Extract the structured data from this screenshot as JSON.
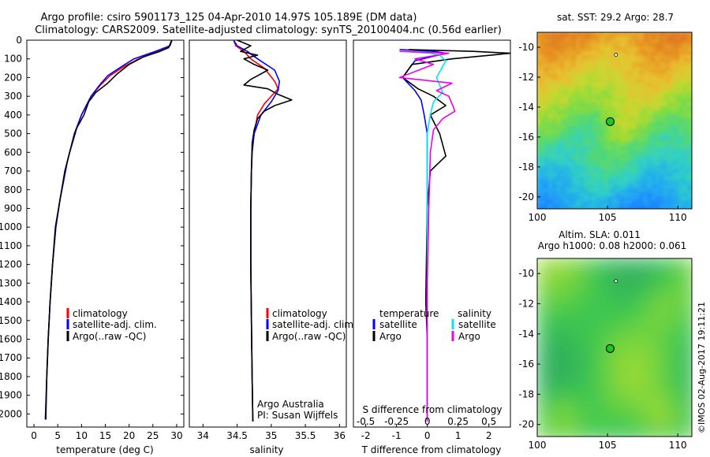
{
  "header": {
    "line1": "Argo profile: csiro 5901173_125 04-Apr-2010 14.97S 105.189E (DM data)",
    "line2": "Climatology: CARS2009. Satellite-adjusted climatology: synTS_20100404.nc (0.56d earlier)"
  },
  "credit": "©IMOS 02-Aug-2017 19:11:21",
  "colors": {
    "clim": "#ff0000",
    "sat": "#0000ff",
    "argo": "#000000",
    "cyan": "#00e5ee",
    "magenta": "#ee00ee"
  },
  "chart_data": [
    {
      "type": "line",
      "id": "temperature",
      "xlabel": "temperature (deg C)",
      "ylabel": "",
      "xlim": [
        -1.5,
        31.5
      ],
      "ylim": [
        2070,
        0
      ],
      "xticks": [
        "0",
        "5",
        "10",
        "15",
        "20",
        "25",
        "30"
      ],
      "yticks": [
        "0",
        "100",
        "200",
        "300",
        "400",
        "500",
        "600",
        "700",
        "800",
        "900",
        "1000",
        "1100",
        "1200",
        "1300",
        "1400",
        "1500",
        "1600",
        "1700",
        "1800",
        "1900",
        "2000"
      ],
      "legend": [
        "climatology",
        "satellite-adj. clim.",
        "Argo(..raw -QC)"
      ],
      "series": [
        {
          "name": "climatology",
          "color": "#ff0000",
          "points": [
            [
              28.9,
              0
            ],
            [
              28.5,
              30
            ],
            [
              26,
              60
            ],
            [
              22,
              100
            ],
            [
              19,
              140
            ],
            [
              16,
              190
            ],
            [
              14,
              240
            ],
            [
              12,
              300
            ],
            [
              10,
              400
            ],
            [
              8.5,
              500
            ],
            [
              7,
              650
            ],
            [
              5.5,
              850
            ],
            [
              4.6,
              1000
            ],
            [
              3.9,
              1200
            ],
            [
              3.4,
              1400
            ],
            [
              3,
              1600
            ],
            [
              2.7,
              1800
            ],
            [
              2.4,
              2030
            ]
          ]
        },
        {
          "name": "satellite-adj. clim.",
          "color": "#0000ff",
          "points": [
            [
              29,
              0
            ],
            [
              28.6,
              30
            ],
            [
              25.5,
              60
            ],
            [
              21,
              100
            ],
            [
              18.5,
              140
            ],
            [
              15.5,
              190
            ],
            [
              13.8,
              240
            ],
            [
              12,
              300
            ],
            [
              10,
              400
            ],
            [
              8.5,
              500
            ],
            [
              7,
              650
            ],
            [
              5.5,
              850
            ],
            [
              4.6,
              1000
            ],
            [
              3.9,
              1200
            ],
            [
              3.4,
              1400
            ],
            [
              3,
              1600
            ],
            [
              2.7,
              1800
            ],
            [
              2.4,
              2030
            ]
          ]
        },
        {
          "name": "Argo(..raw -QC)",
          "color": "#000000",
          "points": [
            [
              29,
              0
            ],
            [
              28.3,
              40
            ],
            [
              26.5,
              60
            ],
            [
              23,
              90
            ],
            [
              20,
              130
            ],
            [
              17.5,
              180
            ],
            [
              15.5,
              230
            ],
            [
              13,
              280
            ],
            [
              11.5,
              330
            ],
            [
              10.5,
              400
            ],
            [
              9,
              470
            ],
            [
              7.5,
              600
            ],
            [
              6.5,
              700
            ],
            [
              5.5,
              850
            ],
            [
              4.5,
              1000
            ],
            [
              3.9,
              1200
            ],
            [
              3.4,
              1400
            ],
            [
              3,
              1600
            ],
            [
              2.7,
              1800
            ],
            [
              2.5,
              2030
            ]
          ]
        }
      ]
    },
    {
      "type": "line",
      "id": "salinity",
      "xlabel": "salinity",
      "xlim": [
        33.8,
        36.1
      ],
      "ylim": [
        2070,
        0
      ],
      "xticks": [
        "34",
        "34.5",
        "35",
        "35.5",
        "36"
      ],
      "legend": [
        "climatology",
        "satellite-adj. clim.",
        "Argo(..raw -QC)"
      ],
      "annotation": [
        "Argo Australia",
        "PI: Susan Wijffels"
      ],
      "series": [
        {
          "name": "climatology",
          "color": "#ff0000",
          "points": [
            [
              34.45,
              0
            ],
            [
              34.48,
              30
            ],
            [
              34.6,
              60
            ],
            [
              34.7,
              100
            ],
            [
              34.9,
              150
            ],
            [
              35.05,
              220
            ],
            [
              35.1,
              260
            ],
            [
              35.0,
              300
            ],
            [
              34.9,
              340
            ],
            [
              34.8,
              400
            ],
            [
              34.75,
              500
            ],
            [
              34.72,
              600
            ],
            [
              34.71,
              700
            ],
            [
              34.7,
              900
            ],
            [
              34.7,
              1200
            ],
            [
              34.71,
              1500
            ],
            [
              34.72,
              1800
            ],
            [
              34.73,
              2040
            ]
          ]
        },
        {
          "name": "satellite-adj. clim.",
          "color": "#0000ff",
          "points": [
            [
              34.45,
              0
            ],
            [
              34.5,
              30
            ],
            [
              34.65,
              60
            ],
            [
              34.8,
              100
            ],
            [
              35.05,
              160
            ],
            [
              35.12,
              220
            ],
            [
              35.1,
              270
            ],
            [
              35.0,
              330
            ],
            [
              34.85,
              400
            ],
            [
              34.75,
              500
            ],
            [
              34.72,
              600
            ],
            [
              34.71,
              700
            ],
            [
              34.7,
              900
            ],
            [
              34.7,
              1200
            ],
            [
              34.71,
              1500
            ],
            [
              34.72,
              1800
            ],
            [
              34.73,
              2040
            ]
          ]
        },
        {
          "name": "Argo(..raw -QC)",
          "color": "#000000",
          "points": [
            [
              34.5,
              0
            ],
            [
              34.7,
              30
            ],
            [
              34.55,
              60
            ],
            [
              34.8,
              80
            ],
            [
              34.6,
              100
            ],
            [
              34.75,
              130
            ],
            [
              34.95,
              160
            ],
            [
              34.7,
              210
            ],
            [
              34.6,
              240
            ],
            [
              34.95,
              260
            ],
            [
              35.1,
              290
            ],
            [
              35.3,
              320
            ],
            [
              35.05,
              350
            ],
            [
              34.9,
              380
            ],
            [
              34.8,
              420
            ],
            [
              34.75,
              480
            ],
            [
              34.72,
              550
            ],
            [
              34.71,
              700
            ],
            [
              34.7,
              900
            ],
            [
              34.7,
              1200
            ],
            [
              34.71,
              1500
            ],
            [
              34.72,
              1800
            ],
            [
              34.73,
              2040
            ]
          ]
        }
      ]
    },
    {
      "type": "line",
      "id": "difference",
      "xlabel": "T difference from climatology",
      "top_label": "S difference from climatology",
      "xlim": [
        -2.4,
        2.7
      ],
      "ylim": [
        2070,
        0
      ],
      "xticks": [
        "-2",
        "-1",
        "0",
        "1",
        "2"
      ],
      "top_ticks": [
        "-0.5",
        "-0.25",
        "0",
        "0.25",
        "0.5"
      ],
      "legend_headers": [
        "temperature",
        "salinity"
      ],
      "legend": [
        "satellite",
        "Argo",
        "satellite",
        "Argo"
      ],
      "series": [
        {
          "name": "temperature satellite",
          "color": "#0000ff",
          "points": [
            [
              -0.9,
              50
            ],
            [
              0.2,
              60
            ],
            [
              0.6,
              70
            ],
            [
              -0.4,
              110
            ],
            [
              -0.8,
              200
            ],
            [
              -0.4,
              270
            ],
            [
              -0.2,
              320
            ],
            [
              -0.1,
              400
            ],
            [
              0,
              500
            ],
            [
              0,
              600
            ],
            [
              0,
              2040
            ]
          ]
        },
        {
          "name": "temperature Argo",
          "color": "#000000",
          "points": [
            [
              -0.6,
              50
            ],
            [
              1.5,
              60
            ],
            [
              2.7,
              70
            ],
            [
              0.8,
              100
            ],
            [
              -0.5,
              130
            ],
            [
              -0.8,
              200
            ],
            [
              -0.3,
              260
            ],
            [
              0.2,
              300
            ],
            [
              0.6,
              350
            ],
            [
              0.1,
              400
            ],
            [
              0.4,
              500
            ],
            [
              0.6,
              620
            ],
            [
              0.1,
              700
            ],
            [
              0,
              900
            ],
            [
              -0.05,
              1400
            ],
            [
              0,
              1600
            ],
            [
              0,
              2040
            ]
          ]
        },
        {
          "name": "salinity satellite",
          "color": "#00e5ee",
          "points": [
            [
              -0.8,
              60
            ],
            [
              0.1,
              70
            ],
            [
              0.4,
              80
            ],
            [
              0.6,
              110
            ],
            [
              0.5,
              140
            ],
            [
              0.3,
              200
            ],
            [
              0.5,
              280
            ],
            [
              0.2,
              330
            ],
            [
              0.1,
              400
            ],
            [
              0,
              500
            ],
            [
              0,
              600
            ],
            [
              0,
              800
            ],
            [
              0,
              2040
            ]
          ]
        },
        {
          "name": "salinity Argo",
          "color": "#ee00ee",
          "points": [
            [
              -0.9,
              60
            ],
            [
              0.7,
              70
            ],
            [
              -0.4,
              100
            ],
            [
              0.2,
              130
            ],
            [
              -0.9,
              200
            ],
            [
              0.8,
              230
            ],
            [
              0.3,
              270
            ],
            [
              0.7,
              300
            ],
            [
              0.9,
              380
            ],
            [
              0.5,
              420
            ],
            [
              0.2,
              480
            ],
            [
              0.1,
              600
            ],
            [
              0.05,
              900
            ],
            [
              0,
              1300
            ],
            [
              0,
              2040
            ]
          ]
        }
      ]
    },
    {
      "type": "heatmap",
      "id": "sst-map",
      "title": "sat. SST: 29.2  Argo: 28.7",
      "xlim": [
        100,
        111
      ],
      "ylim": [
        -20.8,
        -9
      ],
      "xticks": [
        "100",
        "105",
        "110"
      ],
      "yticks": [
        "-10",
        "-12",
        "-14",
        "-16",
        "-18",
        "-20"
      ],
      "marker": [
        105.189,
        -14.97
      ],
      "prev_marker": [
        105.6,
        -10.5
      ]
    },
    {
      "type": "heatmap",
      "id": "sla-map",
      "title": "Altim. SLA: 0.011",
      "subtitle": "Argo h1000: 0.08 h2000: 0.061",
      "xlim": [
        100,
        111
      ],
      "ylim": [
        -20.8,
        -9
      ],
      "xticks": [
        "100",
        "105",
        "110"
      ],
      "yticks": [
        "-10",
        "-12",
        "-14",
        "-16",
        "-18",
        "-20"
      ],
      "marker": [
        105.189,
        -14.97
      ],
      "prev_marker": [
        105.6,
        -10.5
      ]
    }
  ]
}
